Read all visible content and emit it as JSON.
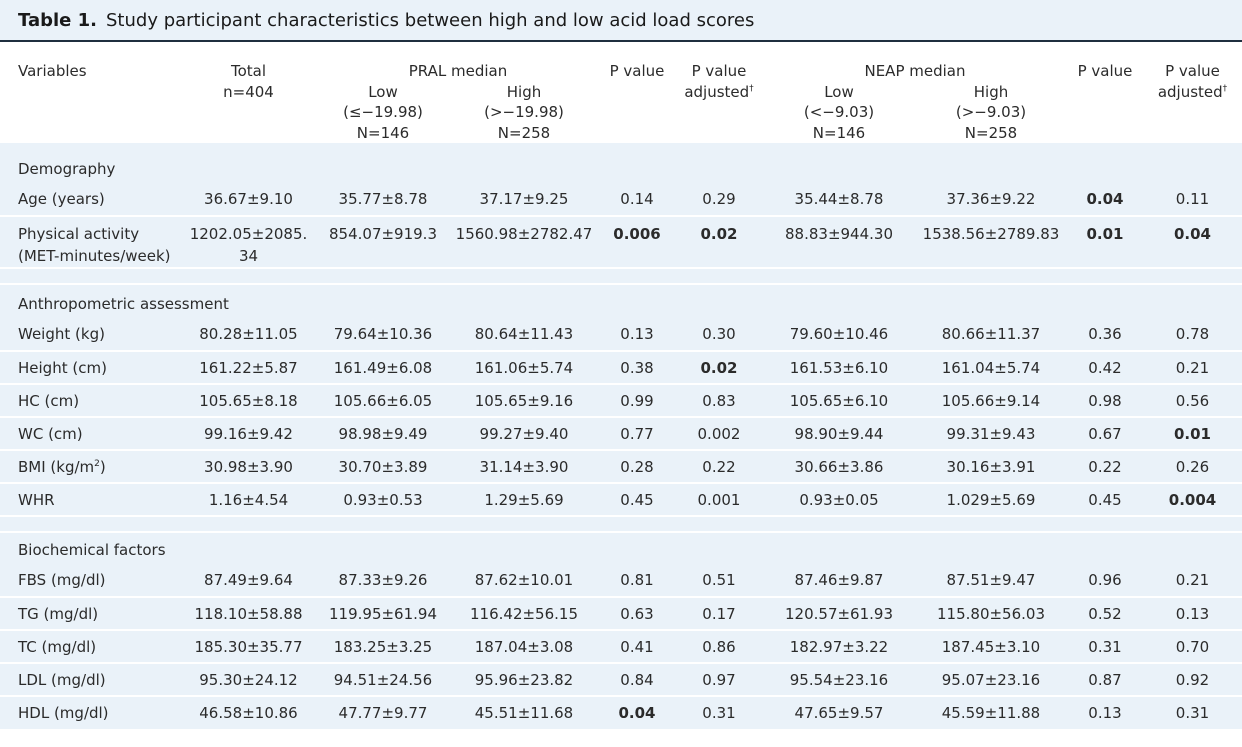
{
  "title": {
    "number": "Table 1.",
    "text": "Study participant characteristics between high and low acid load scores"
  },
  "header": {
    "variables": "Variables",
    "total_label": "Total",
    "total_n": "n=404",
    "pral_median": "PRAL median",
    "pral_low": {
      "label": "Low",
      "range": "(≤−19.98)",
      "n": "N=146"
    },
    "pral_high": {
      "label": "High",
      "range": "(>−19.98)",
      "n": "N=258"
    },
    "pvalue": "P value",
    "pvalue_adj_1": "P value",
    "pvalue_adj_2": "adjusted",
    "dagger": "†",
    "neap_median": "NEAP median",
    "neap_low": {
      "label": "Low",
      "range": "(<−9.03)",
      "n": "N=146"
    },
    "neap_high": {
      "label": "High",
      "range": "(>−9.03)",
      "n": "N=258"
    },
    "pvalue2": "P value",
    "pvalue2_adj_1": "P value",
    "pvalue2_adj_2": "adjusted"
  },
  "sections": {
    "demography": "Demography",
    "anthropometric": "Anthropometric assessment",
    "biochemical": "Biochemical factors"
  },
  "rows": {
    "age": [
      "Age (years)",
      "36.67±9.10",
      "35.77±8.78",
      "37.17±9.25",
      "0.14",
      "0.29",
      "35.44±8.78",
      "37.36±9.22",
      "0.04",
      "0.11"
    ],
    "pa": [
      "Physical activity (MET-minutes/week)",
      "1202.05±2085. 34",
      "854.07±919.3",
      "1560.98±2782.47",
      "0.006",
      "0.02",
      "88.83±944.30",
      "1538.56±2789.83",
      "0.01",
      "0.04"
    ],
    "weight": [
      "Weight (kg)",
      "80.28±11.05",
      "79.64±10.36",
      "80.64±11.43",
      "0.13",
      "0.30",
      "79.60±10.46",
      "80.66±11.37",
      "0.36",
      "0.78"
    ],
    "height": [
      "Height (cm)",
      "161.22±5.87",
      "161.49±6.08",
      "161.06±5.74",
      "0.38",
      "0.02",
      "161.53±6.10",
      "161.04±5.74",
      "0.42",
      "0.21"
    ],
    "hc": [
      "HC (cm)",
      "105.65±8.18",
      "105.66±6.05",
      "105.65±9.16",
      "0.99",
      "0.83",
      "105.65±6.10",
      "105.66±9.14",
      "0.98",
      "0.56"
    ],
    "wc": [
      "WC (cm)",
      "99.16±9.42",
      "98.98±9.49",
      "99.27±9.40",
      "0.77",
      "0.002",
      "98.90±9.44",
      "99.31±9.43",
      "0.67",
      "0.01"
    ],
    "bmi": [
      "BMI (kg/m",
      "30.98±3.90",
      "30.70±3.89",
      "31.14±3.90",
      "0.28",
      "0.22",
      "30.66±3.86",
      "30.16±3.91",
      "0.22",
      "0.26"
    ],
    "bmi_sup": "2",
    "bmi_close": ")",
    "whr": [
      "WHR",
      "1.16±4.54",
      "0.93±0.53",
      "1.29±5.69",
      "0.45",
      "0.001",
      "0.93±0.05",
      "1.029±5.69",
      "0.45",
      "0.004"
    ],
    "fbs": [
      "FBS (mg/dl)",
      "87.49±9.64",
      "87.33±9.26",
      "87.62±10.01",
      "0.81",
      "0.51",
      "87.46±9.87",
      "87.51±9.47",
      "0.96",
      "0.21"
    ],
    "tg": [
      "TG (mg/dl)",
      "118.10±58.88",
      "119.95±61.94",
      "116.42±56.15",
      "0.63",
      "0.17",
      "120.57±61.93",
      "115.80±56.03",
      "0.52",
      "0.13"
    ],
    "tc": [
      "TC (mg/dl)",
      "185.30±35.77",
      "183.25±3.25",
      "187.04±3.08",
      "0.41",
      "0.86",
      "182.97±3.22",
      "187.45±3.10",
      "0.31",
      "0.70"
    ],
    "ldl": [
      "LDL (mg/dl)",
      "95.30±24.12",
      "94.51±24.56",
      "95.96±23.82",
      "0.84",
      "0.97",
      "95.54±23.16",
      "95.07±23.16",
      "0.87",
      "0.92"
    ],
    "hdl": [
      "HDL (mg/dl)",
      "46.58±10.86",
      "47.77±9.77",
      "45.51±11.68",
      "0.04",
      "0.31",
      "47.65±9.57",
      "45.59±11.88",
      "0.13",
      "0.31"
    ]
  },
  "pa_var_line1": "Physical activity",
  "pa_var_line2": "(MET-minutes/week)",
  "pa_total_line1": "1202.05±2085.",
  "pa_total_line2": "34"
}
